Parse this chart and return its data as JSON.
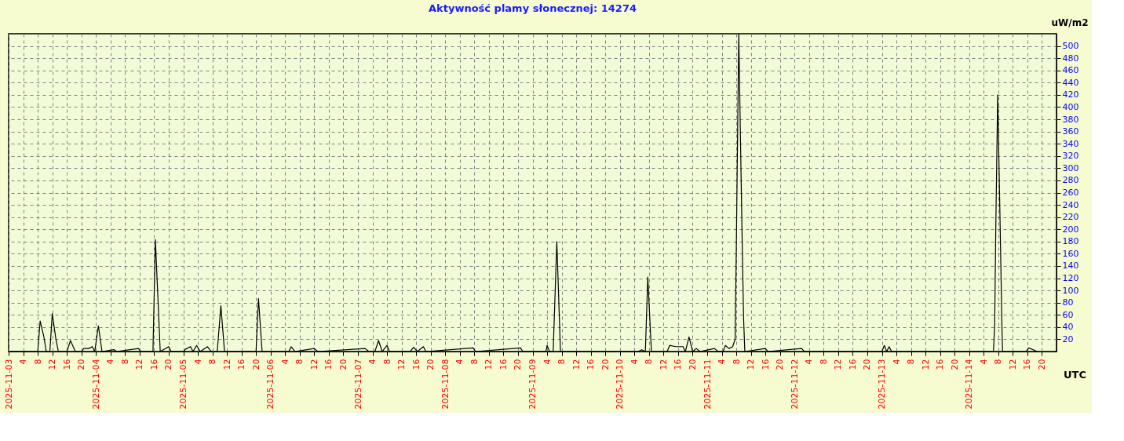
{
  "chart_data": {
    "type": "line",
    "title": "Aktywność plamy słonecznej: 14274",
    "ylabel": "uW/m2",
    "annotations": [
      "UTC"
    ],
    "grid": true,
    "marker": "none",
    "line_style": "solid",
    "series": [
      {
        "color": "#000000",
        "x": [
          "2025-11-03T00:00",
          "2025-11-03T08:00",
          "2025-11-03T08:40",
          "2025-11-03T09:40",
          "2025-11-03T10:20",
          "2025-11-03T11:20",
          "2025-11-03T12:00",
          "2025-11-03T13:00",
          "2025-11-03T13:40",
          "2025-11-03T16:00",
          "2025-11-03T17:00",
          "2025-11-03T18:20",
          "2025-11-03T20:00",
          "2025-11-03T20:40",
          "2025-11-03T22:00",
          "2025-11-03T23:00",
          "2025-11-03T23:40",
          "2025-11-04T00:40",
          "2025-11-04T01:40",
          "2025-11-04T05:00",
          "2025-11-04T05:40",
          "2025-11-04T11:40",
          "2025-11-04T12:20",
          "2025-11-04T15:40",
          "2025-11-04T16:20",
          "2025-11-04T17:40",
          "2025-11-04T20:00",
          "2025-11-04T20:40",
          "2025-11-05T00:00",
          "2025-11-05T00:40",
          "2025-11-05T02:00",
          "2025-11-05T02:40",
          "2025-11-05T03:40",
          "2025-11-05T04:40",
          "2025-11-05T06:40",
          "2025-11-05T07:40",
          "2025-11-05T09:20",
          "2025-11-05T10:20",
          "2025-11-05T11:20",
          "2025-11-05T20:00",
          "2025-11-05T20:40",
          "2025-11-05T21:40",
          "2025-11-06T05:00",
          "2025-11-06T05:40",
          "2025-11-06T06:40",
          "2025-11-06T12:00",
          "2025-11-06T13:00",
          "2025-11-07T02:00",
          "2025-11-07T03:00",
          "2025-11-07T04:40",
          "2025-11-07T05:40",
          "2025-11-07T06:40",
          "2025-11-07T08:00",
          "2025-11-07T08:40",
          "2025-11-07T14:20",
          "2025-11-07T15:20",
          "2025-11-07T16:20",
          "2025-11-07T18:00",
          "2025-11-07T18:40",
          "2025-11-08T07:40",
          "2025-11-08T08:20",
          "2025-11-08T20:40",
          "2025-11-08T21:20",
          "2025-11-09T03:40",
          "2025-11-09T04:00",
          "2025-11-09T04:40",
          "2025-11-09T05:40",
          "2025-11-09T06:40",
          "2025-11-09T07:40",
          "2025-11-10T05:00",
          "2025-11-10T06:00",
          "2025-11-10T07:00",
          "2025-11-10T07:40",
          "2025-11-10T08:40",
          "2025-11-10T13:00",
          "2025-11-10T13:40",
          "2025-11-10T15:20",
          "2025-11-10T17:20",
          "2025-11-10T18:00",
          "2025-11-10T19:00",
          "2025-11-10T20:00",
          "2025-11-10T21:00",
          "2025-11-10T22:00",
          "2025-11-11T02:00",
          "2025-11-11T03:00",
          "2025-11-11T04:20",
          "2025-11-11T05:00",
          "2025-11-11T06:00",
          "2025-11-11T07:00",
          "2025-11-11T07:40",
          "2025-11-11T08:00",
          "2025-11-11T08:40",
          "2025-11-11T09:40",
          "2025-11-11T10:00",
          "2025-11-11T10:20",
          "2025-11-11T16:00",
          "2025-11-11T16:40",
          "2025-11-12T02:00",
          "2025-11-12T02:40",
          "2025-11-13T00:00",
          "2025-11-13T00:40",
          "2025-11-13T01:20",
          "2025-11-13T02:00",
          "2025-11-13T02:40",
          "2025-11-14T06:40",
          "2025-11-14T07:00",
          "2025-11-14T07:20",
          "2025-11-14T07:50",
          "2025-11-14T08:30",
          "2025-11-14T09:00",
          "2025-11-14T09:10",
          "2025-11-14T15:40",
          "2025-11-14T16:20",
          "2025-11-14T18:00",
          "2025-11-14T18:40",
          "2025-11-14T19:00"
        ],
        "values": [
          0,
          0,
          50,
          25,
          0,
          0,
          62,
          20,
          0,
          0,
          18,
          0,
          0,
          5,
          5,
          8,
          0,
          42,
          0,
          3,
          0,
          5,
          0,
          0,
          183,
          0,
          8,
          0,
          0,
          4,
          8,
          0,
          10,
          0,
          8,
          0,
          0,
          75,
          0,
          0,
          87,
          0,
          0,
          8,
          0,
          5,
          0,
          5,
          0,
          0,
          18,
          0,
          10,
          0,
          0,
          7,
          0,
          8,
          0,
          6,
          0,
          6,
          0,
          0,
          10,
          0,
          0,
          180,
          0,
          0,
          3,
          0,
          122,
          0,
          0,
          10,
          8,
          8,
          0,
          24,
          0,
          5,
          0,
          5,
          0,
          0,
          10,
          5,
          8,
          20,
          170,
          520,
          160,
          55,
          0,
          5,
          0,
          5,
          0,
          0,
          10,
          0,
          8,
          0,
          0,
          42,
          210,
          420,
          210,
          42,
          0,
          0,
          6,
          2,
          0,
          0
        ]
      }
    ],
    "xlim": [
      "2025-11-03T00:00",
      "2025-11-15T00:00"
    ],
    "ylim": [
      0,
      520
    ],
    "yticks": [
      20,
      40,
      60,
      80,
      100,
      120,
      140,
      160,
      180,
      200,
      220,
      240,
      260,
      280,
      300,
      320,
      340,
      360,
      380,
      400,
      420,
      440,
      460,
      480,
      500
    ],
    "xticks": [
      {
        "value": "2025-11-03T00:00",
        "label": "2025-11-03"
      },
      {
        "value": "2025-11-03T04:00",
        "label": "4"
      },
      {
        "value": "2025-11-03T08:00",
        "label": "8"
      },
      {
        "value": "2025-11-03T12:00",
        "label": "12"
      },
      {
        "value": "2025-11-03T16:00",
        "label": "16"
      },
      {
        "value": "2025-11-03T20:00",
        "label": "20"
      },
      {
        "value": "2025-11-04T00:00",
        "label": "2025-11-04"
      },
      {
        "value": "2025-11-04T04:00",
        "label": "4"
      },
      {
        "value": "2025-11-04T08:00",
        "label": "8"
      },
      {
        "value": "2025-11-04T12:00",
        "label": "12"
      },
      {
        "value": "2025-11-04T16:00",
        "label": "16"
      },
      {
        "value": "2025-11-04T20:00",
        "label": "20"
      },
      {
        "value": "2025-11-05T00:00",
        "label": "2025-11-05"
      },
      {
        "value": "2025-11-05T04:00",
        "label": "4"
      },
      {
        "value": "2025-11-05T08:00",
        "label": "8"
      },
      {
        "value": "2025-11-05T12:00",
        "label": "12"
      },
      {
        "value": "2025-11-05T16:00",
        "label": "16"
      },
      {
        "value": "2025-11-05T20:00",
        "label": "20"
      },
      {
        "value": "2025-11-06T00:00",
        "label": "2025-11-06"
      },
      {
        "value": "2025-11-06T04:00",
        "label": "4"
      },
      {
        "value": "2025-11-06T08:00",
        "label": "8"
      },
      {
        "value": "2025-11-06T12:00",
        "label": "12"
      },
      {
        "value": "2025-11-06T16:00",
        "label": "16"
      },
      {
        "value": "2025-11-06T20:00",
        "label": "20"
      },
      {
        "value": "2025-11-07T00:00",
        "label": "2025-11-07"
      },
      {
        "value": "2025-11-07T04:00",
        "label": "4"
      },
      {
        "value": "2025-11-07T08:00",
        "label": "8"
      },
      {
        "value": "2025-11-07T12:00",
        "label": "12"
      },
      {
        "value": "2025-11-07T16:00",
        "label": "16"
      },
      {
        "value": "2025-11-07T20:00",
        "label": "20"
      },
      {
        "value": "2025-11-08T00:00",
        "label": "2025-11-08"
      },
      {
        "value": "2025-11-08T04:00",
        "label": "4"
      },
      {
        "value": "2025-11-08T08:00",
        "label": "8"
      },
      {
        "value": "2025-11-08T12:00",
        "label": "12"
      },
      {
        "value": "2025-11-08T16:00",
        "label": "16"
      },
      {
        "value": "2025-11-08T20:00",
        "label": "20"
      },
      {
        "value": "2025-11-09T00:00",
        "label": "2025-11-09"
      },
      {
        "value": "2025-11-09T04:00",
        "label": "4"
      },
      {
        "value": "2025-11-09T08:00",
        "label": "8"
      },
      {
        "value": "2025-11-09T12:00",
        "label": "12"
      },
      {
        "value": "2025-11-09T16:00",
        "label": "16"
      },
      {
        "value": "2025-11-09T20:00",
        "label": "20"
      },
      {
        "value": "2025-11-10T00:00",
        "label": "2025-11-10"
      },
      {
        "value": "2025-11-10T04:00",
        "label": "4"
      },
      {
        "value": "2025-11-10T08:00",
        "label": "8"
      },
      {
        "value": "2025-11-10T12:00",
        "label": "12"
      },
      {
        "value": "2025-11-10T16:00",
        "label": "16"
      },
      {
        "value": "2025-11-10T20:00",
        "label": "20"
      },
      {
        "value": "2025-11-11T00:00",
        "label": "2025-11-11"
      },
      {
        "value": "2025-11-11T04:00",
        "label": "4"
      },
      {
        "value": "2025-11-11T08:00",
        "label": "8"
      },
      {
        "value": "2025-11-11T12:00",
        "label": "12"
      },
      {
        "value": "2025-11-11T16:00",
        "label": "16"
      },
      {
        "value": "2025-11-11T20:00",
        "label": "20"
      },
      {
        "value": "2025-11-12T00:00",
        "label": "2025-11-12"
      },
      {
        "value": "2025-11-12T04:00",
        "label": "4"
      },
      {
        "value": "2025-11-12T08:00",
        "label": "8"
      },
      {
        "value": "2025-11-12T12:00",
        "label": "12"
      },
      {
        "value": "2025-11-12T16:00",
        "label": "16"
      },
      {
        "value": "2025-11-12T20:00",
        "label": "20"
      },
      {
        "value": "2025-11-13T00:00",
        "label": "2025-11-13"
      },
      {
        "value": "2025-11-13T04:00",
        "label": "4"
      },
      {
        "value": "2025-11-13T08:00",
        "label": "8"
      },
      {
        "value": "2025-11-13T12:00",
        "label": "12"
      },
      {
        "value": "2025-11-13T16:00",
        "label": "16"
      },
      {
        "value": "2025-11-13T20:00",
        "label": "20"
      },
      {
        "value": "2025-11-14T00:00",
        "label": "2025-11-14"
      },
      {
        "value": "2025-11-14T04:00",
        "label": "4"
      },
      {
        "value": "2025-11-14T08:00",
        "label": "8"
      },
      {
        "value": "2025-11-14T12:00",
        "label": "12"
      },
      {
        "value": "2025-11-14T16:00",
        "label": "16"
      },
      {
        "value": "2025-11-14T20:00",
        "label": "20"
      }
    ]
  }
}
